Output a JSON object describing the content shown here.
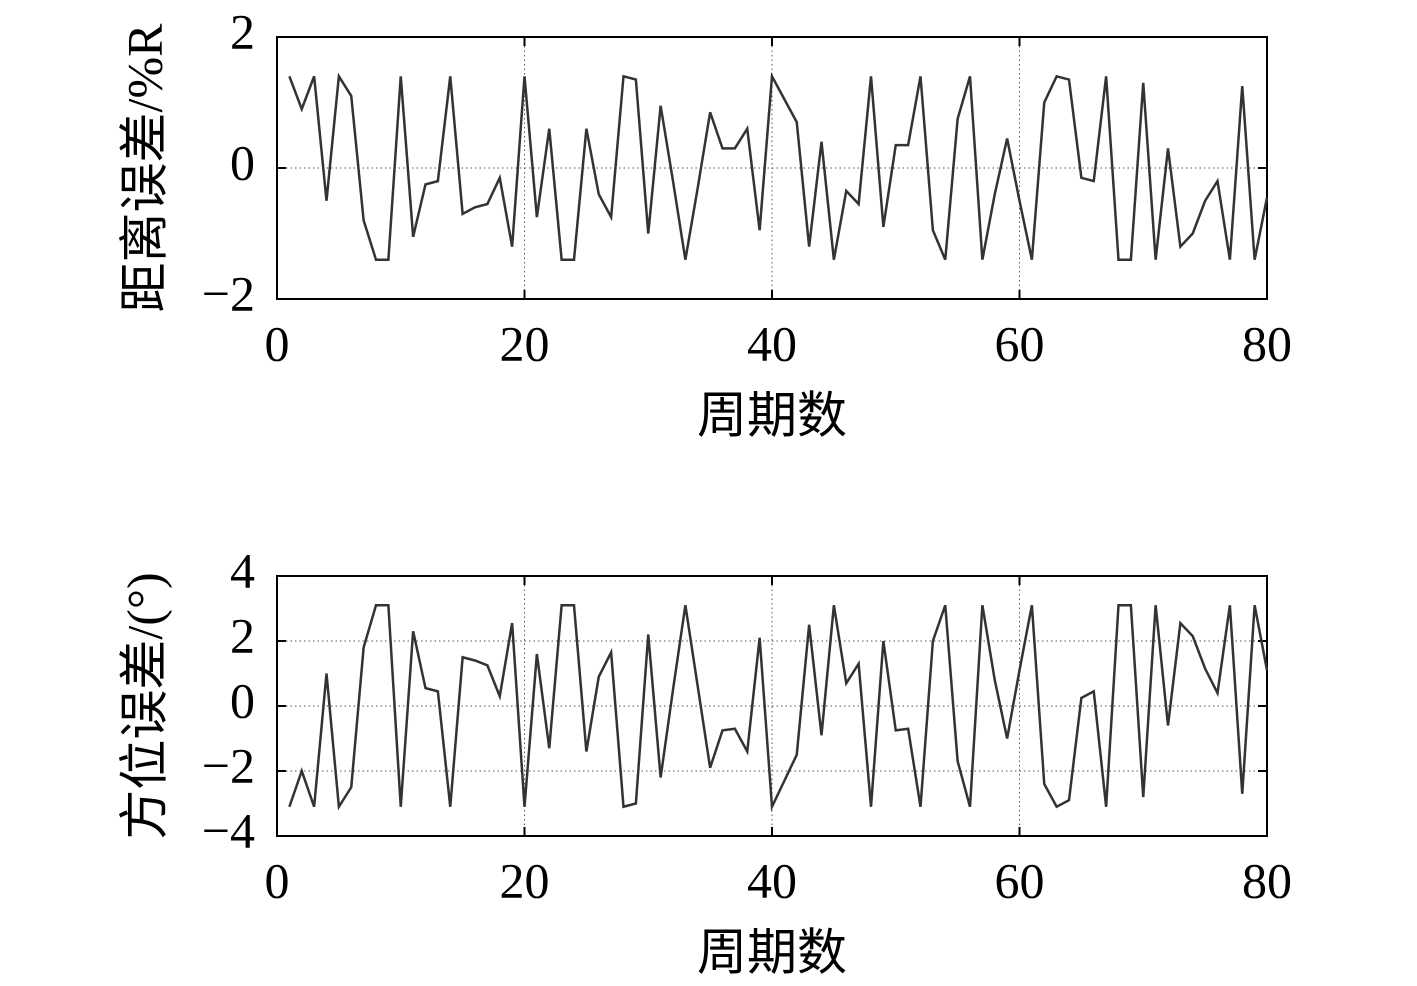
{
  "chart_data": [
    {
      "type": "line",
      "ylabel": "距离误差/%R",
      "xlabel": "周期数",
      "xlim": [
        0,
        80
      ],
      "xticks": [
        0,
        20,
        40,
        60,
        80
      ],
      "ylim": [
        -2,
        2
      ],
      "yticks": [
        {
          "value": -2,
          "label": "−2"
        },
        0,
        2
      ],
      "grid": true,
      "color": "#333333",
      "x": [
        1,
        2,
        3,
        4,
        5,
        6,
        7,
        8,
        9,
        10,
        11,
        12,
        13,
        14,
        15,
        16,
        17,
        18,
        19,
        20,
        21,
        22,
        23,
        24,
        25,
        26,
        27,
        28,
        29,
        30,
        31,
        32,
        33,
        34,
        35,
        36,
        37,
        38,
        39,
        40,
        41,
        42,
        43,
        44,
        45,
        46,
        47,
        48,
        49,
        50,
        51,
        52,
        53,
        54,
        55,
        56,
        57,
        58,
        59,
        60,
        61,
        62,
        63,
        64,
        65,
        66,
        67,
        68,
        69,
        70,
        71,
        72,
        73,
        74,
        75,
        76,
        77,
        78,
        79,
        80
      ],
      "values": [
        1.4,
        0.9,
        1.4,
        -0.5,
        1.4,
        1.1,
        -0.8,
        -1.4,
        -1.4,
        1.4,
        -1.05,
        -0.25,
        -0.2,
        1.4,
        -0.7,
        -0.6,
        -0.55,
        -0.15,
        -1.2,
        1.4,
        -0.75,
        0.6,
        -1.4,
        -1.4,
        0.6,
        -0.4,
        -0.75,
        1.4,
        1.35,
        -1.0,
        0.95,
        -0.2,
        -1.4,
        -0.3,
        0.85,
        0.3,
        0.3,
        0.6,
        -0.95,
        1.4,
        1.05,
        0.7,
        -1.2,
        0.4,
        -1.4,
        -0.35,
        -0.55,
        1.4,
        -0.9,
        0.35,
        0.35,
        1.4,
        -0.95,
        -1.4,
        0.75,
        1.4,
        -1.4,
        -0.4,
        0.45,
        -0.5,
        -1.4,
        1.0,
        1.4,
        1.35,
        -0.15,
        -0.2,
        1.4,
        -1.4,
        -1.4,
        1.3,
        -1.4,
        0.3,
        -1.2,
        -1.0,
        -0.5,
        -0.2,
        -1.4,
        1.25,
        -1.4,
        -0.45
      ]
    },
    {
      "type": "line",
      "ylabel": "方位误差/(°)",
      "xlabel": "周期数",
      "xlim": [
        0,
        80
      ],
      "xticks": [
        0,
        20,
        40,
        60,
        80
      ],
      "ylim": [
        -4,
        4
      ],
      "yticks": [
        {
          "value": -4,
          "label": "−4"
        },
        {
          "value": -2,
          "label": "−2"
        },
        0,
        2,
        4
      ],
      "grid": true,
      "color": "#333333",
      "x": [
        1,
        2,
        3,
        4,
        5,
        6,
        7,
        8,
        9,
        10,
        11,
        12,
        13,
        14,
        15,
        16,
        17,
        18,
        19,
        20,
        21,
        22,
        23,
        24,
        25,
        26,
        27,
        28,
        29,
        30,
        31,
        32,
        33,
        34,
        35,
        36,
        37,
        38,
        39,
        40,
        41,
        42,
        43,
        44,
        45,
        46,
        47,
        48,
        49,
        50,
        51,
        52,
        53,
        54,
        55,
        56,
        57,
        58,
        59,
        60,
        61,
        62,
        63,
        64,
        65,
        66,
        67,
        68,
        69,
        70,
        71,
        72,
        73,
        74,
        75,
        76,
        77,
        78,
        79,
        80
      ],
      "values": [
        -3.1,
        -2.0,
        -3.1,
        1.0,
        -3.1,
        -2.5,
        1.8,
        3.1,
        3.1,
        -3.1,
        2.3,
        0.55,
        0.45,
        -3.1,
        1.5,
        1.4,
        1.25,
        0.3,
        2.55,
        -3.1,
        1.6,
        -1.3,
        3.1,
        3.1,
        -1.4,
        0.9,
        1.65,
        -3.1,
        -3.0,
        2.2,
        -2.2,
        0.5,
        3.1,
        0.6,
        -1.9,
        -0.75,
        -0.7,
        -1.4,
        2.1,
        -3.1,
        -2.3,
        -1.5,
        2.5,
        -0.9,
        3.1,
        0.7,
        1.3,
        -3.1,
        2.0,
        -0.75,
        -0.7,
        -3.1,
        2.0,
        3.1,
        -1.7,
        -3.1,
        3.1,
        0.8,
        -1.0,
        1.1,
        3.1,
        -2.4,
        -3.1,
        -2.9,
        0.25,
        0.45,
        -3.1,
        3.1,
        3.1,
        -2.8,
        3.1,
        -0.6,
        2.55,
        2.15,
        1.15,
        0.4,
        3.1,
        -2.7,
        3.1,
        1.1
      ]
    }
  ]
}
